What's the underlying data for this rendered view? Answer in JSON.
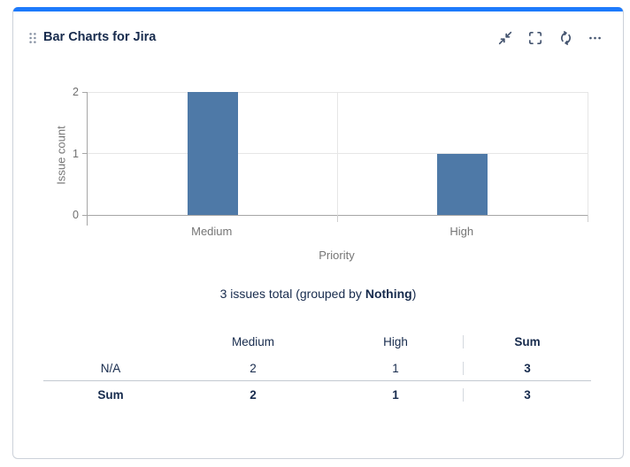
{
  "colors": {
    "accent_bar": "#1D7AFC",
    "bar": "#4e79a7",
    "text_primary": "#172B4D",
    "text_muted": "#757575",
    "card_border": "#ccd1d9"
  },
  "header": {
    "title": "Bar Charts for Jira",
    "drag_handle_icon": "drag-handle-icon",
    "actions": [
      {
        "icon": "collapse-icon",
        "label": "collapse"
      },
      {
        "icon": "expand-icon",
        "label": "expand"
      },
      {
        "icon": "refresh-icon",
        "label": "refresh"
      },
      {
        "icon": "more-icon",
        "label": "more-options"
      }
    ]
  },
  "chart_data": {
    "type": "bar",
    "categories": [
      "Medium",
      "High"
    ],
    "values": [
      2,
      1
    ],
    "title": "",
    "xlabel": "Priority",
    "ylabel": "Issue count",
    "yticks": [
      0,
      1,
      2
    ],
    "ylim": [
      0,
      2
    ],
    "grid": true,
    "legend": "none",
    "bar_color": "#4e79a7"
  },
  "summary": {
    "prefix": "3 issues total (grouped by ",
    "bold": "Nothing",
    "suffix": ")"
  },
  "table": {
    "columns": [
      "",
      "Medium",
      "High",
      "Sum"
    ],
    "rows": [
      {
        "label": "N/A",
        "values": [
          "2",
          "1",
          "3"
        ],
        "bold": false
      },
      {
        "label": "Sum",
        "values": [
          "2",
          "1",
          "3"
        ],
        "bold": true
      }
    ]
  }
}
